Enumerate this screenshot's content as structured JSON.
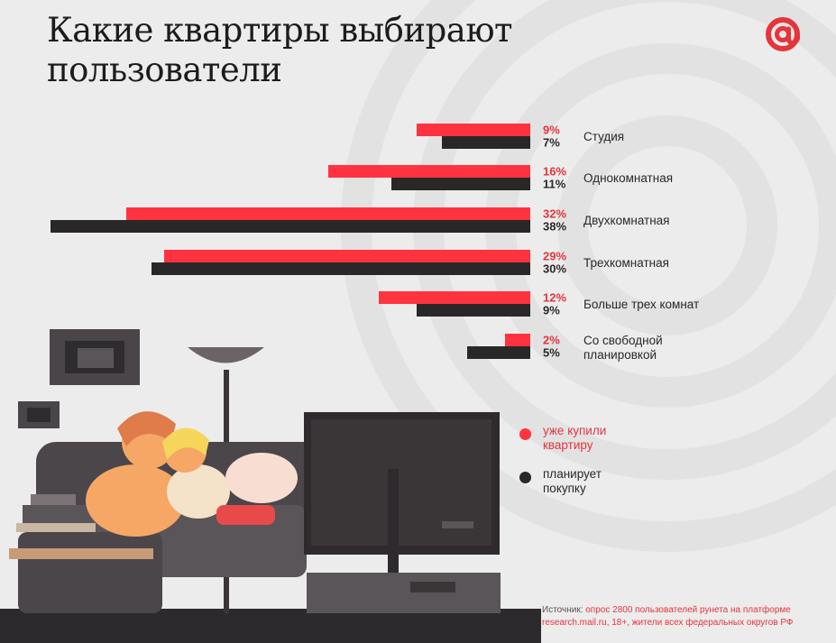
{
  "title": "Какие квартиры выбирают пользователи",
  "logo": {
    "icon": "at-sign-icon",
    "color": "#e4353c"
  },
  "colors": {
    "bought": "#ff333f",
    "planning": "#2a2728",
    "bought_text": "#e4353c",
    "planning_text": "#2a2728"
  },
  "chart_data": {
    "type": "bar",
    "orientation": "horizontal",
    "categories": [
      "Студия",
      "Однокомнатная",
      "Двухкомнатная",
      "Трехкомнатная",
      "Больше трех комнат",
      "Со свободной планировкой"
    ],
    "series": [
      {
        "name": "уже купили квартиру",
        "values": [
          9,
          16,
          32,
          29,
          12,
          2
        ],
        "labels": [
          "9%",
          "16%",
          "32%",
          "29%",
          "12%",
          "2%"
        ]
      },
      {
        "name": "планирует покупку",
        "values": [
          7,
          11,
          38,
          30,
          9,
          5
        ],
        "labels": [
          "7%",
          "11%",
          "38%",
          "30%",
          "9%",
          "5%"
        ]
      }
    ],
    "unit": "%"
  },
  "legend": [
    {
      "label": "уже купили квартиру",
      "color": "#ff333f",
      "text_color": "#e4353c"
    },
    {
      "label": "планирует покупку",
      "color": "#2a2728",
      "text_color": "#2a2728"
    }
  ],
  "source": {
    "prefix": "Источник:",
    "text": "опрос 2800 пользователей рунета на платформе research.mail.ru, 18+, жители всех федеральных округов РФ"
  }
}
